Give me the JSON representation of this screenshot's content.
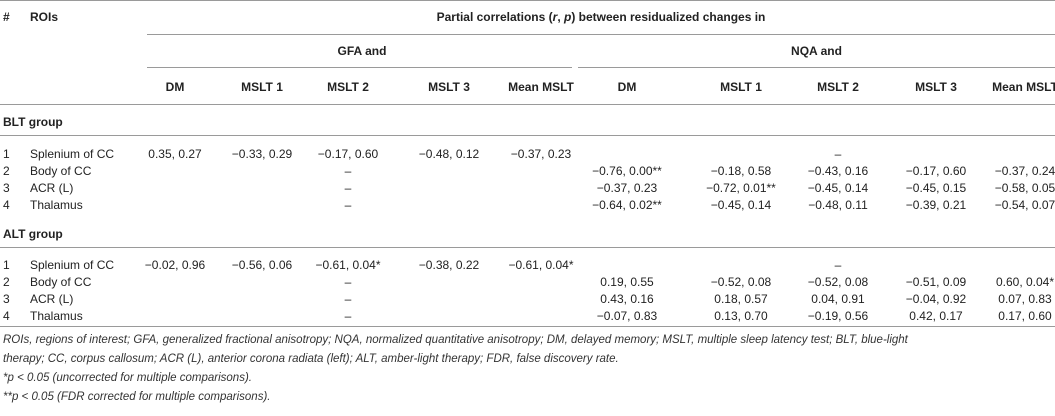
{
  "header": {
    "hash": "#",
    "rois": "ROIs",
    "main": "Partial correlations (r, p) between residualized changes in",
    "main_pre": "Partial correlations (",
    "main_r": "r",
    "main_mid": ", ",
    "main_p": "p",
    "main_post": ") between residualized changes in",
    "gfa": "GFA and",
    "nqa": "NQA and",
    "columns": [
      "DM",
      "MSLT 1",
      "MSLT 2",
      "MSLT 3",
      "Mean MSLT",
      "DM",
      "MSLT 1",
      "MSLT 2",
      "MSLT 3",
      "Mean MSLT"
    ]
  },
  "groups": [
    {
      "label": "BLT group",
      "rows": [
        {
          "num": "1",
          "roi": "Splenium of CC",
          "gfa": [
            "0.35, 0.27",
            "−0.33, 0.29",
            "−0.17, 0.60",
            "−0.48, 0.12",
            "−0.37, 0.23"
          ],
          "nqa_dash": "–"
        },
        {
          "num": "2",
          "roi": "Body of CC",
          "gfa_dash": "–",
          "nqa": [
            "−0.76, 0.00**",
            "−0.18, 0.58",
            "−0.43, 0.16",
            "−0.17, 0.60",
            "−0.37, 0.24"
          ]
        },
        {
          "num": "3",
          "roi": "ACR (L)",
          "gfa_dash": "–",
          "nqa": [
            "−0.37, 0.23",
            "−0.72, 0.01**",
            "−0.45, 0.14",
            "−0.45, 0.15",
            "−0.58, 0.05"
          ]
        },
        {
          "num": "4",
          "roi": "Thalamus",
          "gfa_dash": "–",
          "nqa": [
            "−0.64, 0.02**",
            "−0.45, 0.14",
            "−0.48, 0.11",
            "−0.39, 0.21",
            "−0.54, 0.07"
          ]
        }
      ]
    },
    {
      "label": "ALT group",
      "rows": [
        {
          "num": "1",
          "roi": "Splenium of CC",
          "gfa": [
            "−0.02, 0.96",
            "−0.56, 0.06",
            "−0.61, 0.04*",
            "−0.38, 0.22",
            "−0.61, 0.04*"
          ],
          "nqa_dash": "–"
        },
        {
          "num": "2",
          "roi": "Body of CC",
          "gfa_dash": "–",
          "nqa": [
            "0.19, 0.55",
            "−0.52, 0.08",
            "−0.52, 0.08",
            "−0.51, 0.09",
            "0.60, 0.04*"
          ]
        },
        {
          "num": "3",
          "roi": "ACR (L)",
          "gfa_dash": "–",
          "nqa": [
            "0.43, 0.16",
            "0.18, 0.57",
            "0.04, 0.91",
            "−0.04, 0.92",
            "0.07, 0.83"
          ]
        },
        {
          "num": "4",
          "roi": "Thalamus",
          "gfa_dash": "–",
          "nqa": [
            "−0.07, 0.83",
            "0.13, 0.70",
            "−0.19, 0.56",
            "0.42, 0.17",
            "0.17, 0.60"
          ]
        }
      ]
    }
  ],
  "footnotes": [
    "ROIs, regions of interest; GFA, generalized fractional anisotropy; NQA, normalized quantitative anisotropy; DM, delayed memory; MSLT, multiple sleep latency test; BLT, blue-light",
    "therapy; CC, corpus callosum; ACR (L), anterior corona radiata (left); ALT, amber-light therapy; FDR, false discovery rate.",
    "*p < 0.05 (uncorrected for multiple comparisons).",
    "**p < 0.05 (FDR corrected for multiple comparisons)."
  ]
}
